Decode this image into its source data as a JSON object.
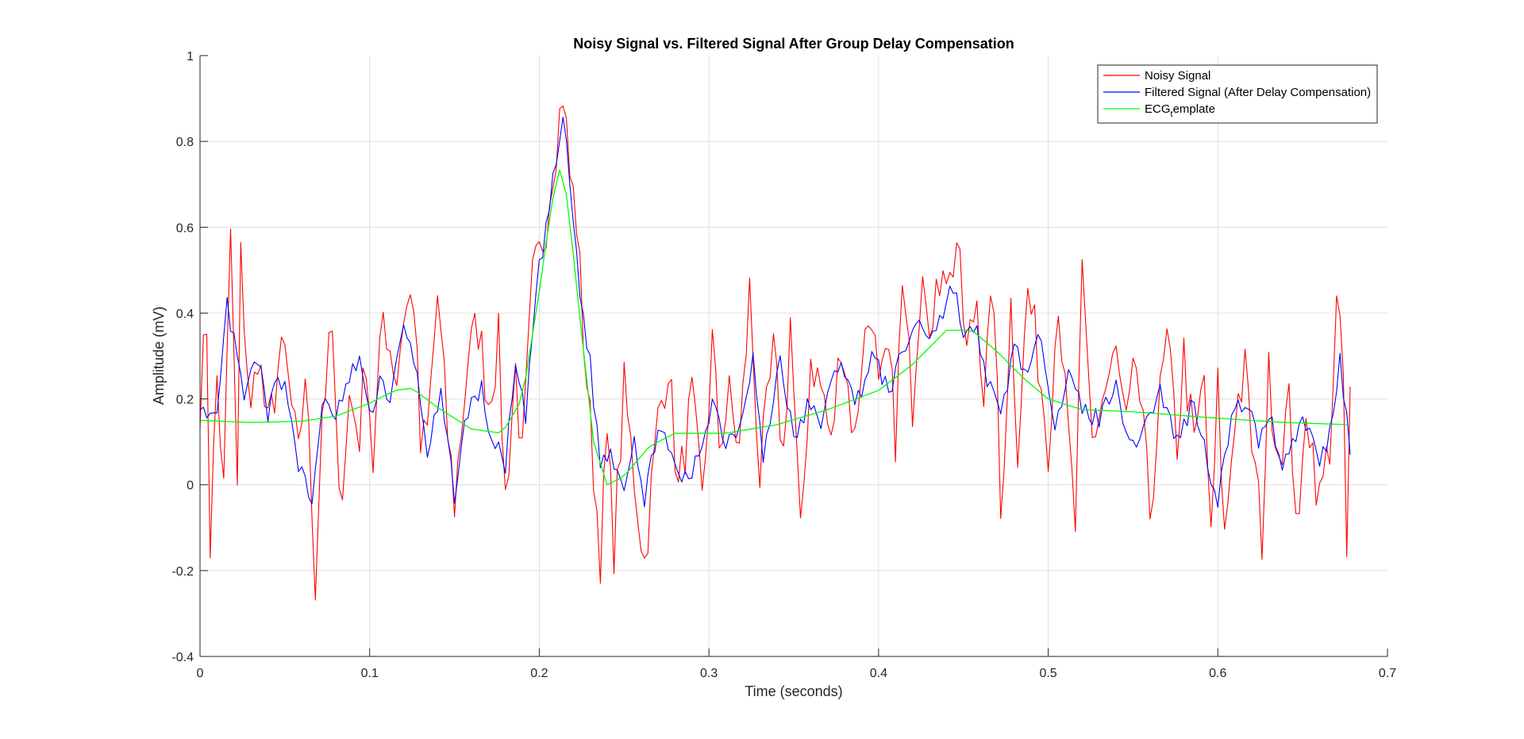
{
  "chart_data": {
    "type": "line",
    "title": "Noisy Signal vs. Filtered Signal After Group Delay Compensation",
    "xlabel": "Time (seconds)",
    "ylabel": "Amplitude (mV)",
    "xlim": [
      0,
      0.7
    ],
    "ylim": [
      -0.4,
      1
    ],
    "xticks": [
      0,
      0.1,
      0.2,
      0.3,
      0.4,
      0.5,
      0.6,
      0.7
    ],
    "xtick_labels": [
      "0",
      "0.1",
      "0.2",
      "0.3",
      "0.4",
      "0.5",
      "0.6",
      "0.7"
    ],
    "yticks": [
      -0.4,
      -0.2,
      0,
      0.2,
      0.4,
      0.6,
      0.8,
      1
    ],
    "ytick_labels": [
      "-0.4",
      "-0.2",
      "0",
      "0.2",
      "0.4",
      "0.6",
      "0.8",
      "1"
    ],
    "grid": true,
    "legend_position": "top-right",
    "x_range": [
      0,
      0.678
    ],
    "sample_spacing": 0.002,
    "series": [
      {
        "name": "Noisy Signal",
        "color": "#ff0000",
        "key_points": [
          [
            0,
            0.2
          ],
          [
            0.004,
            0.38
          ],
          [
            0.006,
            -0.13
          ],
          [
            0.01,
            0.25
          ],
          [
            0.014,
            -0.02
          ],
          [
            0.018,
            0.59
          ],
          [
            0.022,
            -0.02
          ],
          [
            0.024,
            0.52
          ],
          [
            0.03,
            0.15
          ],
          [
            0.034,
            0.32
          ],
          [
            0.04,
            0.12
          ],
          [
            0.046,
            0.27
          ],
          [
            0.05,
            0.3
          ],
          [
            0.058,
            0.05
          ],
          [
            0.062,
            0.27
          ],
          [
            0.068,
            -0.22
          ],
          [
            0.072,
            0.18
          ],
          [
            0.078,
            0.35
          ],
          [
            0.082,
            -0.06
          ],
          [
            0.088,
            0.2
          ],
          [
            0.094,
            0.12
          ],
          [
            0.098,
            0.31
          ],
          [
            0.102,
            0.05
          ],
          [
            0.108,
            0.4
          ],
          [
            0.116,
            0.25
          ],
          [
            0.12,
            0.4
          ],
          [
            0.126,
            0.44
          ],
          [
            0.13,
            0.08
          ],
          [
            0.134,
            0.12
          ],
          [
            0.14,
            0.44
          ],
          [
            0.146,
            0.12
          ],
          [
            0.15,
            -0.04
          ],
          [
            0.158,
            0.3
          ],
          [
            0.164,
            0.37
          ],
          [
            0.17,
            0.2
          ],
          [
            0.176,
            0.33
          ],
          [
            0.18,
            -0.03
          ],
          [
            0.186,
            0.27
          ],
          [
            0.19,
            0.05
          ],
          [
            0.196,
            0.47
          ],
          [
            0.2,
            0.53
          ],
          [
            0.204,
            0.62
          ],
          [
            0.208,
            0.75
          ],
          [
            0.212,
            0.86
          ],
          [
            0.214,
            0.92
          ],
          [
            0.218,
            0.72
          ],
          [
            0.222,
            0.62
          ],
          [
            0.226,
            0.35
          ],
          [
            0.23,
            0.14
          ],
          [
            0.236,
            -0.16
          ],
          [
            0.24,
            0.1
          ],
          [
            0.244,
            -0.14
          ],
          [
            0.25,
            0.22
          ],
          [
            0.256,
            0.02
          ],
          [
            0.262,
            -0.18
          ],
          [
            0.27,
            0.15
          ],
          [
            0.276,
            0.29
          ],
          [
            0.282,
            -0.02
          ],
          [
            0.29,
            0.2
          ],
          [
            0.296,
            -0.05
          ],
          [
            0.302,
            0.33
          ],
          [
            0.306,
            0.1
          ],
          [
            0.312,
            0.2
          ],
          [
            0.318,
            0.08
          ],
          [
            0.324,
            0.45
          ],
          [
            0.33,
            0.02
          ],
          [
            0.338,
            0.3
          ],
          [
            0.344,
            0.07
          ],
          [
            0.348,
            0.39
          ],
          [
            0.354,
            -0.14
          ],
          [
            0.36,
            0.3
          ],
          [
            0.368,
            0.2
          ],
          [
            0.372,
            0.08
          ],
          [
            0.378,
            0.35
          ],
          [
            0.386,
            0.1
          ],
          [
            0.39,
            0.3
          ],
          [
            0.396,
            0.42
          ],
          [
            0.4,
            0.2
          ],
          [
            0.406,
            0.29
          ],
          [
            0.41,
            0.12
          ],
          [
            0.414,
            0.45
          ],
          [
            0.42,
            0.2
          ],
          [
            0.426,
            0.54
          ],
          [
            0.432,
            0.35
          ],
          [
            0.438,
            0.55
          ],
          [
            0.442,
            0.47
          ],
          [
            0.446,
            0.57
          ],
          [
            0.452,
            0.3
          ],
          [
            0.458,
            0.44
          ],
          [
            0.462,
            0.22
          ],
          [
            0.468,
            0.45
          ],
          [
            0.472,
            -0.08
          ],
          [
            0.478,
            0.42
          ],
          [
            0.482,
            0.1
          ],
          [
            0.488,
            0.45
          ],
          [
            0.494,
            0.3
          ],
          [
            0.5,
            0.1
          ],
          [
            0.506,
            0.45
          ],
          [
            0.51,
            0.2
          ],
          [
            0.516,
            -0.1
          ],
          [
            0.52,
            0.46
          ],
          [
            0.526,
            0.1
          ],
          [
            0.532,
            0.2
          ],
          [
            0.54,
            0.3
          ],
          [
            0.546,
            0.12
          ],
          [
            0.552,
            0.28
          ],
          [
            0.56,
            -0.06
          ],
          [
            0.566,
            0.2
          ],
          [
            0.57,
            0.33
          ],
          [
            0.576,
            0.1
          ],
          [
            0.58,
            0.3
          ],
          [
            0.586,
            0.08
          ],
          [
            0.592,
            0.25
          ],
          [
            0.596,
            -0.15
          ],
          [
            0.6,
            0.22
          ],
          [
            0.604,
            -0.13
          ],
          [
            0.61,
            0.17
          ],
          [
            0.616,
            0.26
          ],
          [
            0.62,
            0.1
          ],
          [
            0.626,
            -0.12
          ],
          [
            0.63,
            0.25
          ],
          [
            0.636,
            0.08
          ],
          [
            0.642,
            0.18
          ],
          [
            0.648,
            -0.13
          ],
          [
            0.652,
            0.2
          ],
          [
            0.66,
            -0.04
          ],
          [
            0.666,
            0.1
          ],
          [
            0.67,
            0.41
          ],
          [
            0.674,
            0.25
          ],
          [
            0.676,
            -0.18
          ],
          [
            0.678,
            0.19
          ]
        ]
      },
      {
        "name": "Filtered Signal (After Delay Compensation)",
        "color": "#0000ff",
        "key_points": [
          [
            0,
            0.2
          ],
          [
            0.004,
            0.14
          ],
          [
            0.01,
            0.15
          ],
          [
            0.016,
            0.42
          ],
          [
            0.02,
            0.33
          ],
          [
            0.026,
            0.2
          ],
          [
            0.034,
            0.3
          ],
          [
            0.04,
            0.15
          ],
          [
            0.046,
            0.27
          ],
          [
            0.052,
            0.2
          ],
          [
            0.058,
            0.05
          ],
          [
            0.066,
            -0.05
          ],
          [
            0.072,
            0.2
          ],
          [
            0.078,
            0.15
          ],
          [
            0.084,
            0.2
          ],
          [
            0.094,
            0.3
          ],
          [
            0.1,
            0.15
          ],
          [
            0.106,
            0.25
          ],
          [
            0.112,
            0.2
          ],
          [
            0.12,
            0.36
          ],
          [
            0.126,
            0.3
          ],
          [
            0.134,
            0.08
          ],
          [
            0.142,
            0.2
          ],
          [
            0.15,
            -0.02
          ],
          [
            0.158,
            0.18
          ],
          [
            0.166,
            0.22
          ],
          [
            0.172,
            0.1
          ],
          [
            0.18,
            0.05
          ],
          [
            0.186,
            0.27
          ],
          [
            0.192,
            0.15
          ],
          [
            0.198,
            0.45
          ],
          [
            0.204,
            0.6
          ],
          [
            0.21,
            0.75
          ],
          [
            0.214,
            0.86
          ],
          [
            0.218,
            0.7
          ],
          [
            0.224,
            0.45
          ],
          [
            0.23,
            0.28
          ],
          [
            0.236,
            0.05
          ],
          [
            0.242,
            0.08
          ],
          [
            0.25,
            0.0
          ],
          [
            0.256,
            0.12
          ],
          [
            0.262,
            -0.05
          ],
          [
            0.27,
            0.15
          ],
          [
            0.278,
            0.05
          ],
          [
            0.288,
            0.0
          ],
          [
            0.296,
            0.1
          ],
          [
            0.302,
            0.2
          ],
          [
            0.31,
            0.1
          ],
          [
            0.318,
            0.14
          ],
          [
            0.326,
            0.3
          ],
          [
            0.332,
            0.05
          ],
          [
            0.342,
            0.3
          ],
          [
            0.35,
            0.1
          ],
          [
            0.358,
            0.18
          ],
          [
            0.366,
            0.15
          ],
          [
            0.378,
            0.3
          ],
          [
            0.386,
            0.18
          ],
          [
            0.396,
            0.3
          ],
          [
            0.406,
            0.22
          ],
          [
            0.414,
            0.3
          ],
          [
            0.422,
            0.38
          ],
          [
            0.43,
            0.35
          ],
          [
            0.438,
            0.4
          ],
          [
            0.444,
            0.47
          ],
          [
            0.45,
            0.35
          ],
          [
            0.458,
            0.35
          ],
          [
            0.464,
            0.25
          ],
          [
            0.472,
            0.15
          ],
          [
            0.48,
            0.33
          ],
          [
            0.488,
            0.25
          ],
          [
            0.496,
            0.35
          ],
          [
            0.504,
            0.15
          ],
          [
            0.512,
            0.25
          ],
          [
            0.52,
            0.18
          ],
          [
            0.53,
            0.15
          ],
          [
            0.54,
            0.25
          ],
          [
            0.548,
            0.08
          ],
          [
            0.558,
            0.15
          ],
          [
            0.566,
            0.22
          ],
          [
            0.576,
            0.1
          ],
          [
            0.586,
            0.2
          ],
          [
            0.594,
            0.05
          ],
          [
            0.6,
            -0.03
          ],
          [
            0.608,
            0.15
          ],
          [
            0.616,
            0.2
          ],
          [
            0.624,
            0.1
          ],
          [
            0.63,
            0.17
          ],
          [
            0.638,
            0.05
          ],
          [
            0.646,
            0.12
          ],
          [
            0.652,
            0.15
          ],
          [
            0.66,
            0.05
          ],
          [
            0.666,
            0.12
          ],
          [
            0.672,
            0.3
          ],
          [
            0.678,
            0.08
          ]
        ]
      },
      {
        "name": "ECG_template",
        "color": "#00ff00",
        "key_points": [
          [
            0,
            0.15
          ],
          [
            0.03,
            0.145
          ],
          [
            0.06,
            0.148
          ],
          [
            0.08,
            0.16
          ],
          [
            0.1,
            0.19
          ],
          [
            0.115,
            0.22
          ],
          [
            0.125,
            0.225
          ],
          [
            0.14,
            0.18
          ],
          [
            0.16,
            0.13
          ],
          [
            0.178,
            0.12
          ],
          [
            0.19,
            0.2
          ],
          [
            0.2,
            0.45
          ],
          [
            0.207,
            0.65
          ],
          [
            0.213,
            0.75
          ],
          [
            0.217,
            0.65
          ],
          [
            0.225,
            0.35
          ],
          [
            0.232,
            0.1
          ],
          [
            0.24,
            0.0
          ],
          [
            0.25,
            0.02
          ],
          [
            0.265,
            0.09
          ],
          [
            0.28,
            0.12
          ],
          [
            0.31,
            0.12
          ],
          [
            0.34,
            0.14
          ],
          [
            0.37,
            0.175
          ],
          [
            0.4,
            0.22
          ],
          [
            0.42,
            0.28
          ],
          [
            0.44,
            0.36
          ],
          [
            0.455,
            0.36
          ],
          [
            0.47,
            0.31
          ],
          [
            0.485,
            0.25
          ],
          [
            0.5,
            0.2
          ],
          [
            0.52,
            0.175
          ],
          [
            0.55,
            0.17
          ],
          [
            0.6,
            0.155
          ],
          [
            0.64,
            0.145
          ],
          [
            0.678,
            0.14
          ]
        ]
      }
    ]
  },
  "legend": {
    "items": [
      {
        "label": "Noisy Signal",
        "color": "#ff0000"
      },
      {
        "label": "Filtered Signal (After Delay Compensation)",
        "color": "#0000ff"
      },
      {
        "label_main": "ECG",
        "label_sub": "t",
        "label_rest": "emplate",
        "color": "#00ff00"
      }
    ]
  }
}
